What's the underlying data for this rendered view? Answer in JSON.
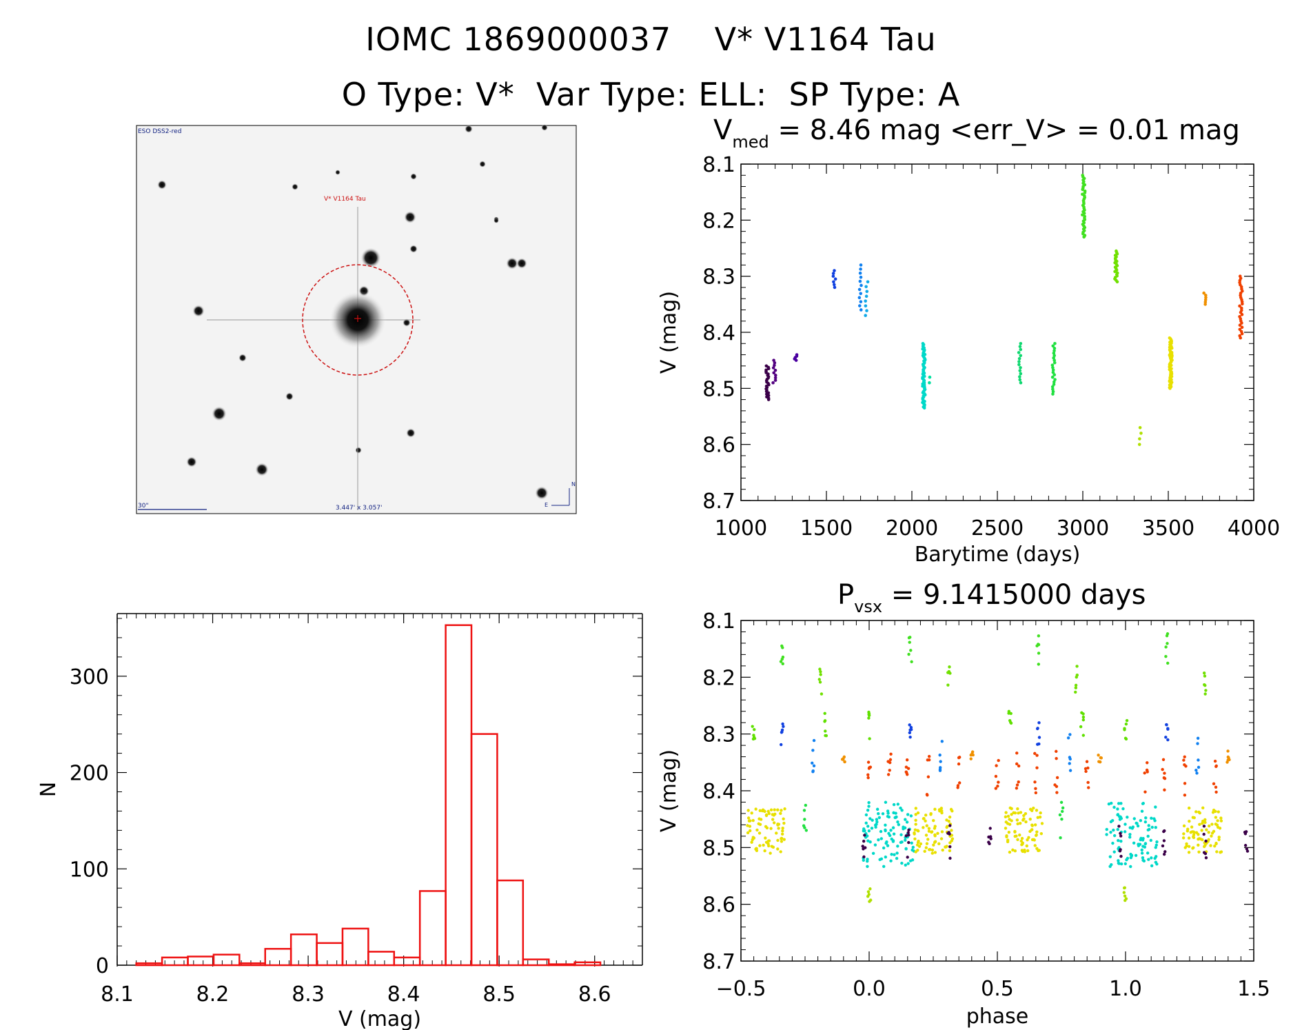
{
  "header": {
    "line1": "IOMC 1869000037    V* V1164 Tau",
    "line2": "O Type: V*  Var Type: ELL:  SP Type: A"
  },
  "sky_image": {
    "survey_label": "ESO DSS2-red",
    "object_label": "V* V1164 Tau",
    "scale_label": "30\"",
    "fov_label": "3.447' x 3.057'",
    "north_label": "N",
    "east_label": "E"
  },
  "chart_data": [
    {
      "id": "light_curve",
      "type": "scatter",
      "title": "V_med = 8.46 mag <err_V> = 0.01 mag",
      "title_parts": {
        "v": "V",
        "sub": "med",
        "rest": " = 8.46 mag <err_V> = 0.01 mag"
      },
      "xlabel": "Barytime (days)",
      "ylabel": "V (mag)",
      "xlim": [
        1000,
        4000
      ],
      "ylim": [
        8.7,
        8.1
      ],
      "y_inverted": true,
      "xticks": [
        1000,
        1500,
        2000,
        2500,
        3000,
        3500,
        4000
      ],
      "yticks": [
        8.1,
        8.2,
        8.3,
        8.4,
        8.5,
        8.6,
        8.7
      ],
      "series": [
        {
          "color": "#3a0048",
          "x": 1155,
          "y_min": 8.46,
          "y_max": 8.52,
          "n": 26
        },
        {
          "color": "#520080",
          "x": 1195,
          "y_min": 8.45,
          "y_max": 8.49,
          "n": 10
        },
        {
          "color": "#4a00a0",
          "x": 1320,
          "y_min": 8.44,
          "y_max": 8.45,
          "n": 5
        },
        {
          "color": "#1040e0",
          "x": 1545,
          "y_min": 8.29,
          "y_max": 8.32,
          "n": 7
        },
        {
          "color": "#1080f0",
          "x": 1700,
          "y_min": 8.28,
          "y_max": 8.36,
          "n": 12
        },
        {
          "color": "#10a8e8",
          "x": 1735,
          "y_min": 8.31,
          "y_max": 8.37,
          "n": 8
        },
        {
          "color": "#00d8c8",
          "x": 2070,
          "y_min": 8.42,
          "y_max": 8.535,
          "n": 60
        },
        {
          "color": "#00e0a0",
          "x": 2110,
          "y_min": 8.48,
          "y_max": 8.49,
          "n": 2
        },
        {
          "color": "#10d870",
          "x": 2630,
          "y_min": 8.42,
          "y_max": 8.49,
          "n": 14
        },
        {
          "color": "#20e040",
          "x": 2830,
          "y_min": 8.42,
          "y_max": 8.51,
          "n": 22
        },
        {
          "color": "#40e020",
          "x": 3005,
          "y_min": 8.12,
          "y_max": 8.23,
          "n": 40
        },
        {
          "color": "#70e000",
          "x": 3195,
          "y_min": 8.255,
          "y_max": 8.31,
          "n": 22
        },
        {
          "color": "#b0e000",
          "x": 3335,
          "y_min": 8.57,
          "y_max": 8.6,
          "n": 4
        },
        {
          "color": "#e8e000",
          "x": 3515,
          "y_min": 8.41,
          "y_max": 8.5,
          "n": 60
        },
        {
          "color": "#f09000",
          "x": 3715,
          "y_min": 8.33,
          "y_max": 8.35,
          "n": 6
        },
        {
          "color": "#f04000",
          "x": 3925,
          "y_min": 8.3,
          "y_max": 8.41,
          "n": 30
        }
      ]
    },
    {
      "id": "phased_curve",
      "type": "scatter",
      "title": "P_vsx = 9.1415000 days",
      "title_parts": {
        "p": "P",
        "sub": "vsx",
        "rest": " = 9.1415000 days"
      },
      "xlabel": "phase",
      "ylabel": "V (mag)",
      "xlim": [
        -0.5,
        1.5
      ],
      "ylim": [
        8.7,
        8.1
      ],
      "y_inverted": true,
      "xticks": [
        -0.5,
        0.0,
        0.5,
        1.0,
        1.5
      ],
      "xtick_labels": [
        "−0.5",
        "0.0",
        "0.5",
        "1.0",
        "1.5"
      ],
      "yticks": [
        8.1,
        8.2,
        8.3,
        8.4,
        8.5,
        8.6,
        8.7
      ],
      "groups": [
        {
          "color": "#40e020",
          "phases": [
            -0.34,
            0.16,
            0.66,
            1.16
          ],
          "y_min": 8.12,
          "y_max": 8.18
        },
        {
          "color": "#70e000",
          "phases": [
            -0.19,
            0.31,
            0.81,
            1.31
          ],
          "y_min": 8.18,
          "y_max": 8.23
        },
        {
          "color": "#60e000",
          "phases": [
            -0.45,
            -0.17,
            0.0,
            0.55,
            0.83,
            1.0
          ],
          "y_min": 8.26,
          "y_max": 8.31
        },
        {
          "color": "#1040e0",
          "phases": [
            -0.34,
            0.16,
            0.66,
            1.16
          ],
          "y_min": 8.28,
          "y_max": 8.32
        },
        {
          "color": "#1080f0",
          "phases": [
            -0.22,
            0.28,
            0.78,
            1.28
          ],
          "y_min": 8.3,
          "y_max": 8.37
        },
        {
          "color": "#f09000",
          "phases": [
            -0.1,
            0.4,
            0.9,
            1.4
          ],
          "y_min": 8.33,
          "y_max": 8.35
        },
        {
          "color": "#f04000",
          "phases": [
            0.0,
            0.08,
            0.15,
            0.23,
            0.35,
            0.5,
            0.58,
            0.65,
            0.73,
            0.85,
            1.08,
            1.15,
            1.23,
            1.35
          ],
          "y_min": 8.33,
          "y_max": 8.41
        },
        {
          "color": "#00d8c8",
          "phases": [
            0.0,
            0.05,
            0.1,
            0.15,
            0.95,
            1.0,
            1.05,
            1.1
          ],
          "y_min": 8.42,
          "y_max": 8.535
        },
        {
          "color": "#e8e000",
          "phases": [
            -0.45,
            -0.4,
            -0.35,
            0.2,
            0.25,
            0.3,
            0.55,
            0.6,
            0.65,
            1.25,
            1.3,
            1.35
          ],
          "y_min": 8.43,
          "y_max": 8.51
        },
        {
          "color": "#20e040",
          "phases": [
            -0.25,
            0.75
          ],
          "y_min": 8.42,
          "y_max": 8.49
        },
        {
          "color": "#3a0048",
          "phases": [
            -0.02,
            0.15,
            0.31,
            0.47,
            0.98,
            1.15,
            1.31,
            1.47
          ],
          "y_min": 8.46,
          "y_max": 8.52
        },
        {
          "color": "#b0e000",
          "phases": [
            0.0,
            1.0
          ],
          "y_min": 8.57,
          "y_max": 8.6
        }
      ]
    },
    {
      "id": "histogram",
      "type": "bar",
      "title": "",
      "xlabel": "V (mag)",
      "ylabel": "N",
      "xlim": [
        8.1,
        8.65
      ],
      "ylim": [
        0,
        365
      ],
      "xticks": [
        8.1,
        8.2,
        8.3,
        8.4,
        8.5,
        8.6
      ],
      "yticks": [
        0,
        100,
        200,
        300
      ],
      "bin_width": 0.027,
      "bin_starts": [
        8.12,
        8.147,
        8.174,
        8.201,
        8.228,
        8.255,
        8.282,
        8.309,
        8.336,
        8.363,
        8.39,
        8.417,
        8.444,
        8.471,
        8.498,
        8.525,
        8.552,
        8.579
      ],
      "counts": [
        2,
        8,
        9,
        11,
        2,
        17,
        32,
        23,
        38,
        14,
        8,
        77,
        353,
        240,
        88,
        6,
        1,
        3
      ],
      "color": "#ee1111"
    }
  ]
}
